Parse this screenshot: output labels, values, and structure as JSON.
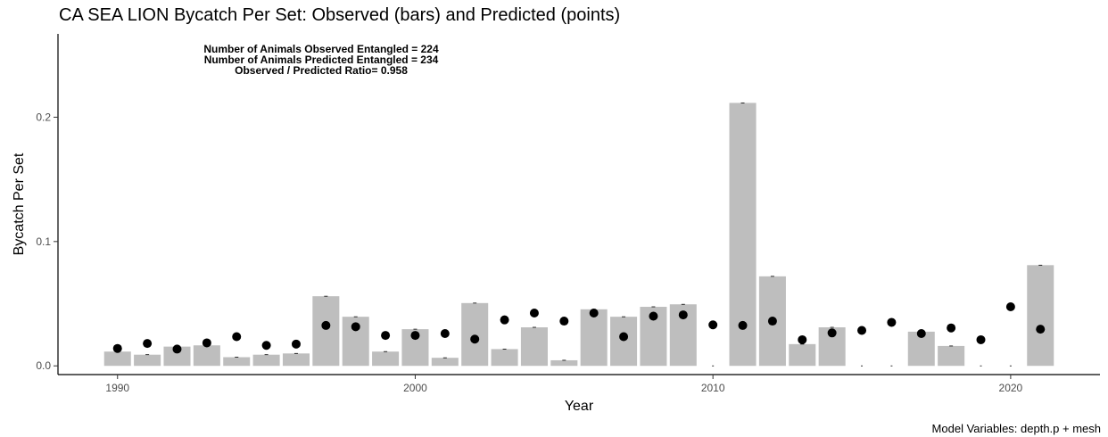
{
  "chart_data": {
    "type": "bar",
    "title": "CA SEA LION Bycatch Per Set: Observed (bars) and Predicted (points)",
    "xlabel": "Year",
    "ylabel": "Bycatch Per Set",
    "caption": "Model Variables: depth.p + mesh",
    "annotations": [
      "Number of Animals Observed Entangled = 224",
      "Number of Animals Predicted Entangled = 234",
      "Observed / Predicted Ratio= 0.958"
    ],
    "x_ticks": [
      "1990",
      "2000",
      "2010",
      "2020"
    ],
    "y_ticks": [
      "0.0",
      "0.1",
      "0.2"
    ],
    "xlim": [
      1988,
      2023
    ],
    "ylim": [
      -0.007,
      0.267
    ],
    "grid": false,
    "legend": "none",
    "colors": {
      "observed": "#bebebe",
      "predicted": "#000000"
    },
    "series": [
      {
        "name": "Observed",
        "kind": "bar",
        "x": [
          1990,
          1991,
          1992,
          1993,
          1994,
          1995,
          1996,
          1997,
          1998,
          1999,
          2000,
          2001,
          2002,
          2003,
          2004,
          2005,
          2006,
          2007,
          2008,
          2009,
          2010,
          2011,
          2012,
          2013,
          2014,
          2015,
          2016,
          2017,
          2018,
          2019,
          2020,
          2021
        ],
        "values": [
          0.0115,
          0.009,
          0.0155,
          0.0165,
          0.007,
          0.009,
          0.01,
          0.056,
          0.0395,
          0.0115,
          0.0295,
          0.0065,
          0.0505,
          0.0135,
          0.031,
          0.0045,
          0.0455,
          0.0395,
          0.0475,
          0.0495,
          0.0,
          0.2115,
          0.072,
          0.0175,
          0.031,
          0.0,
          0.0,
          0.0275,
          0.016,
          0.0,
          0.0,
          0.081
        ]
      },
      {
        "name": "Predicted",
        "kind": "point",
        "x": [
          1990,
          1991,
          1992,
          1993,
          1994,
          1995,
          1996,
          1997,
          1998,
          1999,
          2000,
          2001,
          2002,
          2003,
          2004,
          2005,
          2006,
          2007,
          2008,
          2009,
          2010,
          2011,
          2012,
          2013,
          2014,
          2015,
          2016,
          2017,
          2018,
          2019,
          2020,
          2021
        ],
        "values": [
          0.014,
          0.018,
          0.0135,
          0.0185,
          0.0235,
          0.0165,
          0.0175,
          0.0325,
          0.0315,
          0.0245,
          0.0245,
          0.026,
          0.0215,
          0.037,
          0.0425,
          0.036,
          0.0425,
          0.0235,
          0.04,
          0.041,
          0.033,
          0.0325,
          0.036,
          0.021,
          0.0265,
          0.0285,
          0.035,
          0.026,
          0.0305,
          0.021,
          0.0475,
          0.0295
        ]
      }
    ]
  }
}
